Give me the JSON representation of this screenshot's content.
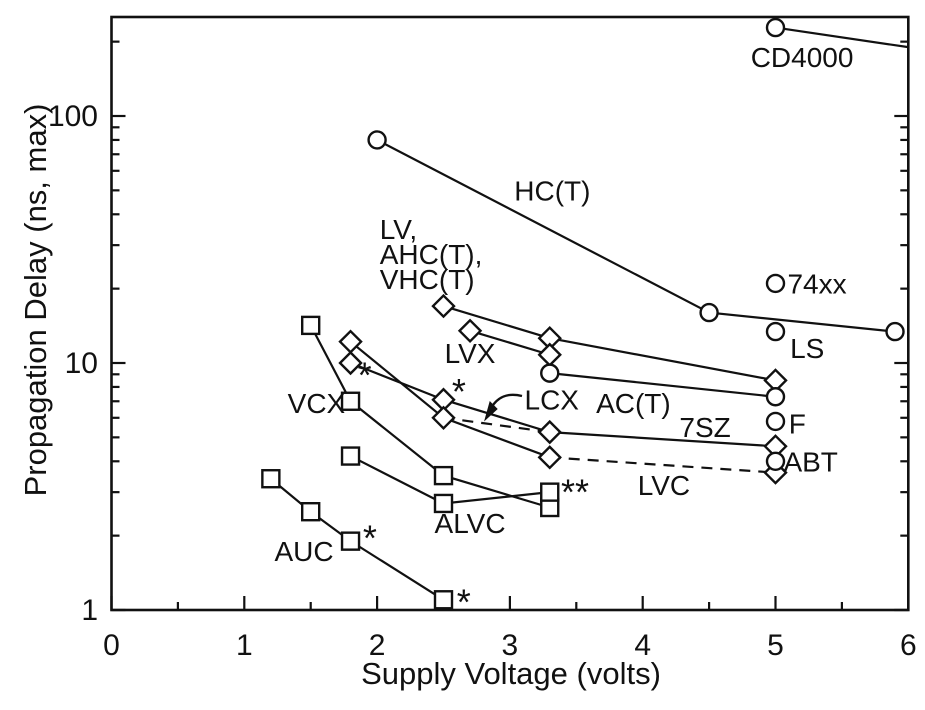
{
  "figure": {
    "background": "#ffffff",
    "ink": "#111111"
  },
  "axes": {
    "x": {
      "title": "Supply Voltage (volts)",
      "min": 0,
      "max": 6,
      "major_ticks": [
        0,
        1,
        2,
        3,
        4,
        5,
        6
      ],
      "tick_labels": [
        "0",
        "1",
        "2",
        "3",
        "4",
        "5",
        "6"
      ],
      "minor_ticks": [
        0.5,
        1.5,
        2.5,
        3.5,
        4.5,
        5.5
      ]
    },
    "y": {
      "title": "Propagation Delay (ns, max)",
      "scale": "log",
      "major_ticks": [
        1,
        10,
        100
      ],
      "tick_labels": [
        "1",
        "10",
        "100"
      ],
      "minor_ticks": [
        2,
        3,
        4,
        5,
        6,
        7,
        8,
        9,
        20,
        30,
        40,
        50,
        60,
        70,
        80,
        90,
        200
      ]
    }
  },
  "chart_data": {
    "type": "line",
    "title": "",
    "xlabel": "Supply Voltage (volts)",
    "ylabel": "Propagation Delay (ns, max)",
    "x_range": [
      0,
      6
    ],
    "y_range": [
      1,
      252
    ],
    "y_scale": "log",
    "grid": false,
    "legend": "inline-labels",
    "series": [
      {
        "name": "CD4000",
        "marker": "circle",
        "points": [
          [
            5,
            228
          ],
          [
            6,
            190
          ]
        ],
        "no_marker_indices": [
          1
        ],
        "label": {
          "text": "CD4000",
          "v": 5.2,
          "d": 173,
          "anchor": "middle"
        }
      },
      {
        "name": "HC(T)",
        "marker": "circle",
        "points": [
          [
            2,
            80
          ],
          [
            4.5,
            16
          ],
          [
            5.9,
            13.4
          ]
        ],
        "label": {
          "text": "HC(T)",
          "v": 3.32,
          "d": 50,
          "anchor": "middle"
        }
      },
      {
        "name": "74xx",
        "marker": "circle",
        "points": [
          [
            5,
            21
          ]
        ],
        "label": {
          "text": "74xx",
          "v": 5.09,
          "d": 21,
          "anchor": "start"
        }
      },
      {
        "name": "LS",
        "marker": "circle",
        "points": [
          [
            5,
            13.4
          ]
        ],
        "label": {
          "text": "LS",
          "v": 5.11,
          "d": 11.5,
          "anchor": "start"
        }
      },
      {
        "name": "LV, AHC(T), VHC(T)",
        "marker": "diamond",
        "points": [
          [
            2.5,
            17
          ],
          [
            3.3,
            12.6
          ],
          [
            5,
            8.5
          ]
        ],
        "label": {
          "lines": [
            "LV,",
            "AHC(T),",
            "VHC(T)"
          ],
          "v": 2.02,
          "d": 34.9,
          "anchor": "start"
        }
      },
      {
        "name": "LVX",
        "marker": "diamond",
        "points": [
          [
            2.7,
            13.5
          ],
          [
            3.3,
            10.8
          ]
        ],
        "label": {
          "text": "LVX",
          "v": 2.7,
          "d": 11.0,
          "anchor": "middle"
        }
      },
      {
        "name": "AC(T)",
        "marker": "circle",
        "points": [
          [
            3.3,
            9.1
          ],
          [
            5,
            7.3
          ]
        ],
        "label": {
          "text": "AC(T)",
          "v": 3.93,
          "d": 6.9,
          "anchor": "middle"
        }
      },
      {
        "name": "F",
        "marker": "circle",
        "points": [
          [
            5,
            5.8
          ]
        ],
        "label": {
          "text": "F",
          "v": 5.1,
          "d": 5.7,
          "anchor": "start"
        }
      },
      {
        "name": "7SZ",
        "marker": "diamond",
        "points": [
          [
            1.8,
            10
          ],
          [
            2.5,
            7.1
          ],
          [
            3.3,
            5.25
          ],
          [
            5,
            4.6
          ]
        ],
        "label": {
          "text": "7SZ",
          "v": 4.47,
          "d": 5.5,
          "anchor": "middle"
        }
      },
      {
        "name": "LCX",
        "marker": "none",
        "dash": true,
        "points": [
          [
            2.5,
            6.0
          ],
          [
            3.3,
            5.25
          ]
        ],
        "label": {
          "text": "LCX",
          "v": 3.11,
          "d": 7.1,
          "anchor": "start"
        }
      },
      {
        "name": "LVC",
        "marker": "diamond",
        "points": [
          [
            1.8,
            12.2
          ],
          [
            2.5,
            6.0
          ],
          [
            3.3,
            4.15
          ],
          [
            5,
            3.6
          ]
        ],
        "dash_from_index": 2,
        "label": {
          "text": "LVC",
          "v": 4.16,
          "d": 3.2,
          "anchor": "middle"
        }
      },
      {
        "name": "ABT",
        "marker": "circle",
        "points": [
          [
            5,
            4.0
          ]
        ],
        "label": {
          "text": "ABT",
          "v": 5.06,
          "d": 4.0,
          "anchor": "start"
        }
      },
      {
        "name": "VCX",
        "marker": "square",
        "points": [
          [
            1.5,
            14.2
          ],
          [
            1.8,
            7.0
          ],
          [
            2.5,
            3.5
          ],
          [
            3.3,
            2.6
          ]
        ],
        "label": {
          "text": "VCX",
          "v": 1.76,
          "d": 6.9,
          "anchor": "end"
        }
      },
      {
        "name": "ALVC",
        "marker": "square",
        "points": [
          [
            1.8,
            4.2
          ],
          [
            2.5,
            2.7
          ],
          [
            3.3,
            3.0
          ]
        ],
        "label": {
          "text": "ALVC",
          "v": 2.7,
          "d": 2.25,
          "anchor": "middle"
        }
      },
      {
        "name": "AUC",
        "marker": "square",
        "points": [
          [
            1.2,
            3.4
          ],
          [
            1.5,
            2.5
          ],
          [
            1.8,
            1.9
          ],
          [
            2.5,
            1.1
          ]
        ],
        "label": {
          "text": "AUC",
          "v": 1.45,
          "d": 1.73,
          "anchor": "middle"
        }
      }
    ],
    "annotations": {
      "stars": [
        {
          "text": "*",
          "v": 1.906,
          "d": 9.0
        },
        {
          "text": "*",
          "v": 2.616,
          "d": 7.7
        },
        {
          "text": "*",
          "v": 1.946,
          "d": 1.97
        },
        {
          "text": "*",
          "v": 2.653,
          "d": 1.08
        },
        {
          "text": "**",
          "v": 3.49,
          "d": 3.02
        }
      ],
      "callout": {
        "for": "LCX",
        "style": "curved-arrow"
      }
    }
  }
}
